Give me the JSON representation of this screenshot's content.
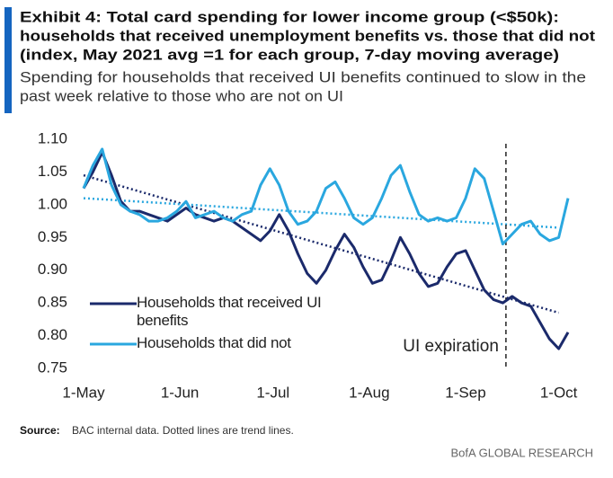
{
  "chart_data": {
    "type": "line",
    "title": [
      "Exhibit 4: Total card spending for lower income group (<$50k):",
      "households that received unemployment benefits vs. those that did not",
      "(index, May 2021 avg =1 for each group, 7-day moving average)"
    ],
    "subtitle": [
      "Spending for households that received UI benefits continued to slow in the",
      "past week relative to those who are not on UI"
    ],
    "x": [
      "2021-05-01",
      "2021-05-04",
      "2021-05-07",
      "2021-05-10",
      "2021-05-13",
      "2021-05-16",
      "2021-05-19",
      "2021-05-22",
      "2021-05-25",
      "2021-05-28",
      "2021-05-31",
      "2021-06-03",
      "2021-06-06",
      "2021-06-09",
      "2021-06-12",
      "2021-06-15",
      "2021-06-18",
      "2021-06-21",
      "2021-06-24",
      "2021-06-27",
      "2021-06-30",
      "2021-07-03",
      "2021-07-06",
      "2021-07-09",
      "2021-07-12",
      "2021-07-15",
      "2021-07-18",
      "2021-07-21",
      "2021-07-24",
      "2021-07-27",
      "2021-07-30",
      "2021-08-02",
      "2021-08-05",
      "2021-08-08",
      "2021-08-11",
      "2021-08-14",
      "2021-08-17",
      "2021-08-20",
      "2021-08-23",
      "2021-08-26",
      "2021-08-29",
      "2021-09-01",
      "2021-09-04",
      "2021-09-07",
      "2021-09-10",
      "2021-09-13",
      "2021-09-16",
      "2021-09-19",
      "2021-09-22",
      "2021-09-25",
      "2021-09-28",
      "2021-10-01",
      "2021-10-04"
    ],
    "series": [
      {
        "name": "Households that received UI benefits",
        "color": "#1b2a6b",
        "values": [
          1.025,
          1.05,
          1.08,
          1.045,
          1.005,
          0.99,
          0.99,
          0.985,
          0.98,
          0.975,
          0.985,
          0.995,
          0.985,
          0.98,
          0.975,
          0.98,
          0.975,
          0.965,
          0.955,
          0.945,
          0.96,
          0.985,
          0.96,
          0.925,
          0.895,
          0.88,
          0.9,
          0.93,
          0.955,
          0.935,
          0.905,
          0.88,
          0.885,
          0.915,
          0.95,
          0.925,
          0.895,
          0.875,
          0.88,
          0.905,
          0.925,
          0.93,
          0.9,
          0.87,
          0.855,
          0.85,
          0.86,
          0.85,
          0.845,
          0.82,
          0.795,
          0.78,
          0.805
        ]
      },
      {
        "name": "Households that did not",
        "color": "#2aa7df",
        "values": [
          1.025,
          1.06,
          1.085,
          1.03,
          1.0,
          0.99,
          0.985,
          0.975,
          0.975,
          0.98,
          0.99,
          1.005,
          0.98,
          0.985,
          0.99,
          0.98,
          0.975,
          0.985,
          0.99,
          1.03,
          1.055,
          1.03,
          0.99,
          0.97,
          0.975,
          0.99,
          1.025,
          1.035,
          1.01,
          0.98,
          0.97,
          0.98,
          1.01,
          1.045,
          1.06,
          1.02,
          0.985,
          0.975,
          0.98,
          0.975,
          0.98,
          1.01,
          1.055,
          1.04,
          0.99,
          0.94,
          0.955,
          0.97,
          0.975,
          0.955,
          0.945,
          0.95,
          1.01
        ]
      }
    ],
    "trend_lines": [
      {
        "color": "#1b2a6b",
        "x": [
          "2021-05-01",
          "2021-10-01"
        ],
        "values": [
          1.045,
          0.835
        ]
      },
      {
        "color": "#2aa7df",
        "x": [
          "2021-05-01",
          "2021-10-01"
        ],
        "values": [
          1.01,
          0.965
        ]
      }
    ],
    "annotations": [
      {
        "text": "UI expiration",
        "x": "2021-09-14"
      }
    ],
    "xlim": [
      "2021-05-01",
      "2021-10-04"
    ],
    "xticks": [
      {
        "value": "2021-05-01",
        "label": "1-May"
      },
      {
        "value": "2021-06-01",
        "label": "1-Jun"
      },
      {
        "value": "2021-07-01",
        "label": "1-Jul"
      },
      {
        "value": "2021-08-01",
        "label": "1-Aug"
      },
      {
        "value": "2021-09-01",
        "label": "1-Sep"
      },
      {
        "value": "2021-10-01",
        "label": "1-Oct"
      }
    ],
    "ylim": [
      0.75,
      1.1
    ],
    "yticks": [
      {
        "value": 1.1,
        "label": "1.10"
      },
      {
        "value": 1.05,
        "label": "1.05"
      },
      {
        "value": 1.0,
        "label": "1.00"
      },
      {
        "value": 0.95,
        "label": "0.95"
      },
      {
        "value": 0.9,
        "label": "0.90"
      },
      {
        "value": 0.85,
        "label": "0.85"
      },
      {
        "value": 0.8,
        "label": "0.80"
      },
      {
        "value": 0.75,
        "label": "0.75"
      }
    ],
    "grid": false,
    "legend": "lower-left",
    "source_label": "Source:",
    "source": "BAC internal data. Dotted lines are trend lines.",
    "footer": "BofA GLOBAL RESEARCH"
  }
}
